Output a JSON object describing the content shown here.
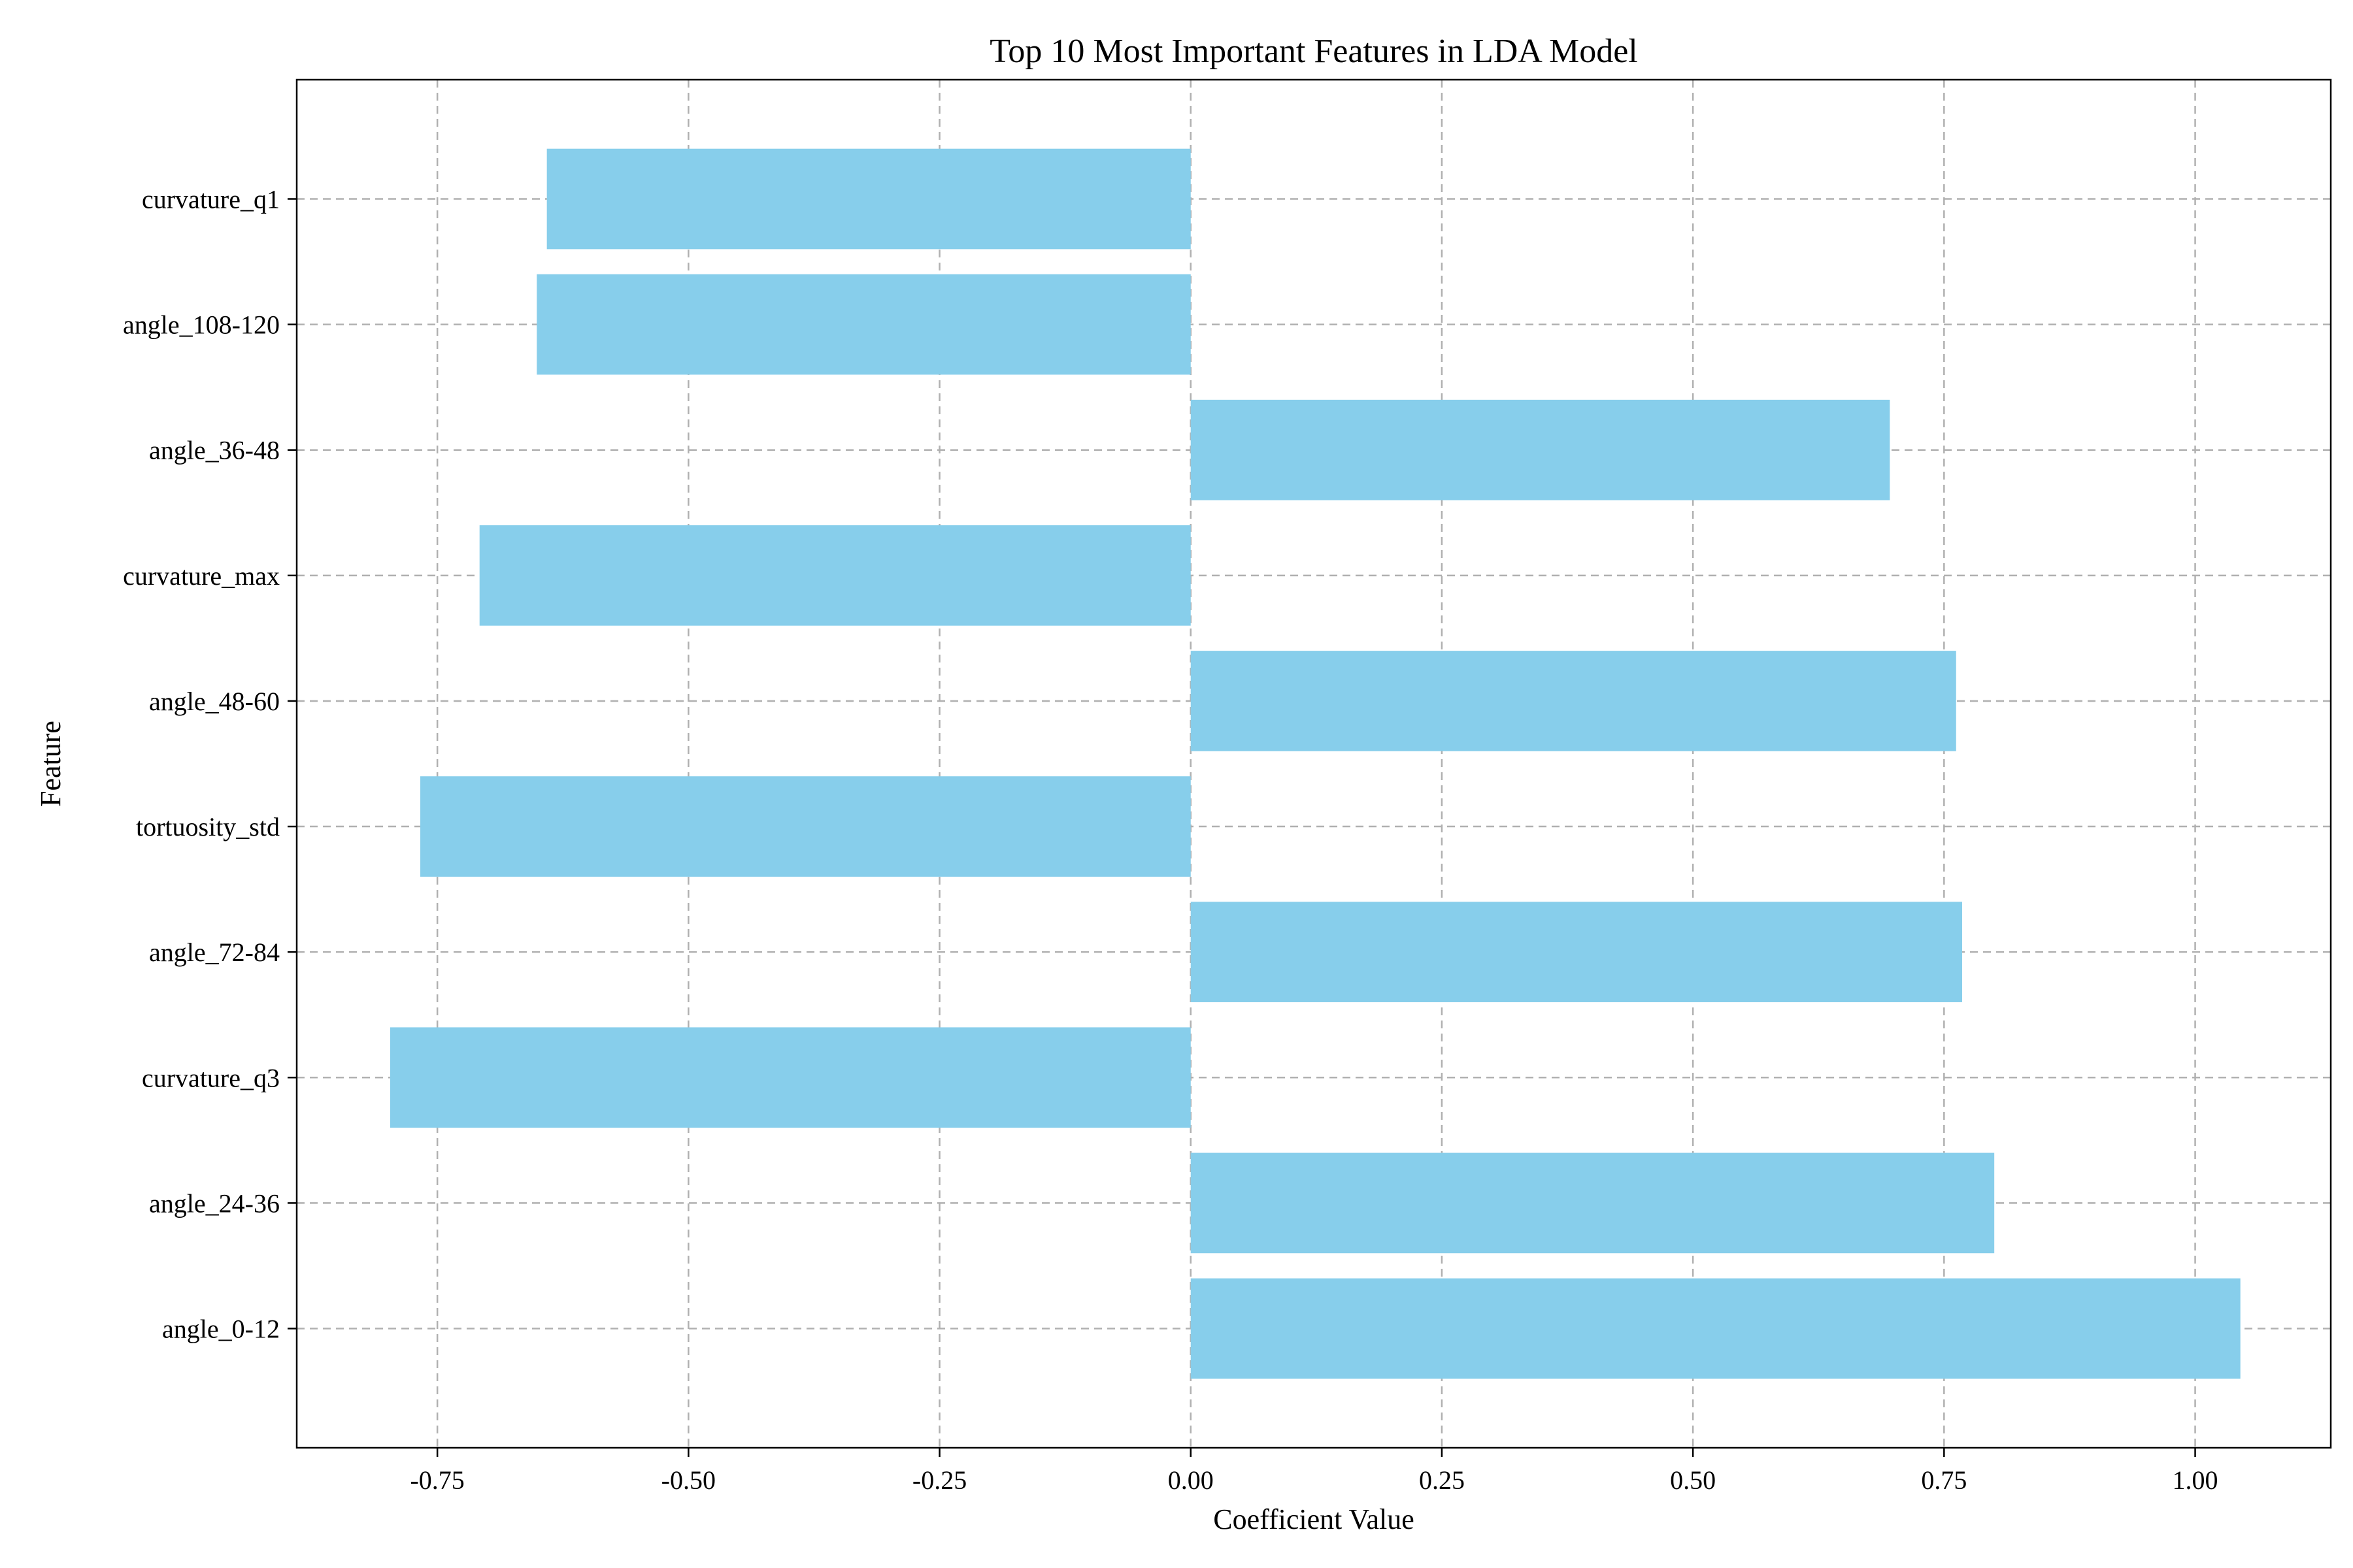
{
  "chart_data": {
    "type": "bar",
    "orientation": "horizontal",
    "title": "Top 10 Most Important Features in LDA Model",
    "xlabel": "Coefficient Value",
    "ylabel": "Feature",
    "categories": [
      "angle_0-12",
      "angle_24-36",
      "curvature_q3",
      "angle_72-84",
      "tortuosity_std",
      "angle_48-60",
      "curvature_max",
      "angle_36-48",
      "angle_108-120",
      "curvature_q1"
    ],
    "values": [
      1.045,
      0.8,
      -0.797,
      0.768,
      -0.767,
      0.762,
      -0.708,
      0.696,
      -0.651,
      -0.641
    ],
    "xlim": [
      -0.89,
      1.135
    ],
    "xticks": [
      -0.75,
      -0.5,
      -0.25,
      0.0,
      0.25,
      0.5,
      0.75,
      1.0
    ],
    "xtick_labels": [
      "-0.75",
      "-0.50",
      "-0.25",
      "0.00",
      "0.25",
      "0.50",
      "0.75",
      "1.00"
    ],
    "grid": true,
    "bar_color": "#87CEEB"
  }
}
